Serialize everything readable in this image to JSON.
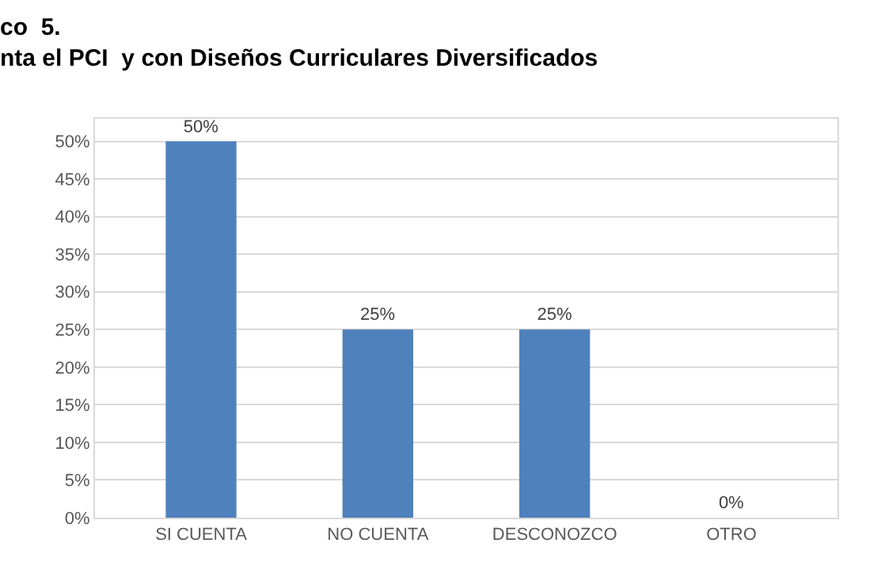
{
  "chart_data": {
    "type": "bar",
    "title": "co  5.\nnta el PCI  y con Diseños Curriculares Diversificados",
    "categories": [
      "SI CUENTA",
      "NO CUENTA",
      "DESCONOZCO",
      "OTRO"
    ],
    "values": [
      50,
      25,
      25,
      0
    ],
    "value_labels": [
      "50%",
      "25%",
      "25%",
      "0%"
    ],
    "color": "#4f81bd",
    "ylim": [
      0,
      53
    ],
    "yticks": [
      {
        "value": 0,
        "label": "0%"
      },
      {
        "value": 5,
        "label": "5%"
      },
      {
        "value": 10,
        "label": "10%"
      },
      {
        "value": 15,
        "label": "15%"
      },
      {
        "value": 20,
        "label": "20%"
      },
      {
        "value": 25,
        "label": "25%"
      },
      {
        "value": 30,
        "label": "30%"
      },
      {
        "value": 35,
        "label": "35%"
      },
      {
        "value": 40,
        "label": "40%"
      },
      {
        "value": 45,
        "label": "45%"
      },
      {
        "value": 50,
        "label": "50%"
      }
    ],
    "grid": "y",
    "legend": false
  }
}
